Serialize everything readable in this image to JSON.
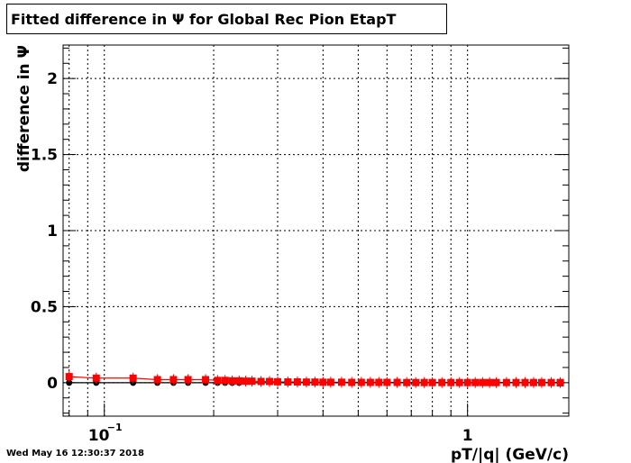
{
  "title": "Fitted difference in  Ψ  for Global Rec Pion EtapT",
  "timestamp": "Wed May 16 12:30:37 2018",
  "chart_data": {
    "type": "scatter",
    "title": "Fitted difference in  Ψ  for Global Rec Pion EtapT",
    "xlabel": "pT/|q| (GeV/c)",
    "ylabel": "difference in  Ψ",
    "x_scale": "log",
    "xlim": [
      0.077,
      1.9
    ],
    "ylim": [
      -0.22,
      2.22
    ],
    "grid": true,
    "x_tick_labels": [
      "10⁻¹",
      "1"
    ],
    "y_tick_labels": [
      "0",
      "0.5",
      "1",
      "1.5",
      "2"
    ],
    "series": [
      {
        "color": "#ff0000",
        "marker": "square",
        "x": [
          0.08,
          0.095,
          0.12,
          0.14,
          0.155,
          0.17,
          0.19,
          0.205,
          0.215,
          0.225,
          0.235,
          0.245,
          0.255,
          0.27,
          0.285,
          0.3,
          0.32,
          0.34,
          0.36,
          0.38,
          0.4,
          0.42,
          0.45,
          0.48,
          0.51,
          0.54,
          0.57,
          0.6,
          0.64,
          0.68,
          0.72,
          0.76,
          0.8,
          0.85,
          0.9,
          0.95,
          1.0,
          1.05,
          1.1,
          1.15,
          1.2,
          1.28,
          1.36,
          1.44,
          1.52,
          1.6,
          1.7,
          1.8
        ],
        "y": [
          0.04,
          0.03,
          0.03,
          0.02,
          0.02,
          0.02,
          0.02,
          0.015,
          0.015,
          0.012,
          0.012,
          0.01,
          0.01,
          0.008,
          0.008,
          0.006,
          0.005,
          0.005,
          0.004,
          0.004,
          0.003,
          0.003,
          0.003,
          0.002,
          0.002,
          0.002,
          0.002,
          0.002,
          0.002,
          0.001,
          0.001,
          0.001,
          0.001,
          0.001,
          0.001,
          0.001,
          0.001,
          0.001,
          0.001,
          0.001,
          0.001,
          0.001,
          0.001,
          0.001,
          0.001,
          0.001,
          0.001,
          0.001
        ]
      },
      {
        "color": "#000000",
        "marker": "circle",
        "x": [
          0.08,
          0.095,
          0.12,
          0.14,
          0.155,
          0.17,
          0.19,
          0.205,
          0.215,
          0.225,
          0.235,
          1.8
        ],
        "y": [
          0.0,
          0.0,
          0.0,
          0.0,
          0.0,
          0.0,
          0.0,
          0.0,
          0.0,
          0.0,
          0.0,
          0.0
        ]
      }
    ]
  }
}
